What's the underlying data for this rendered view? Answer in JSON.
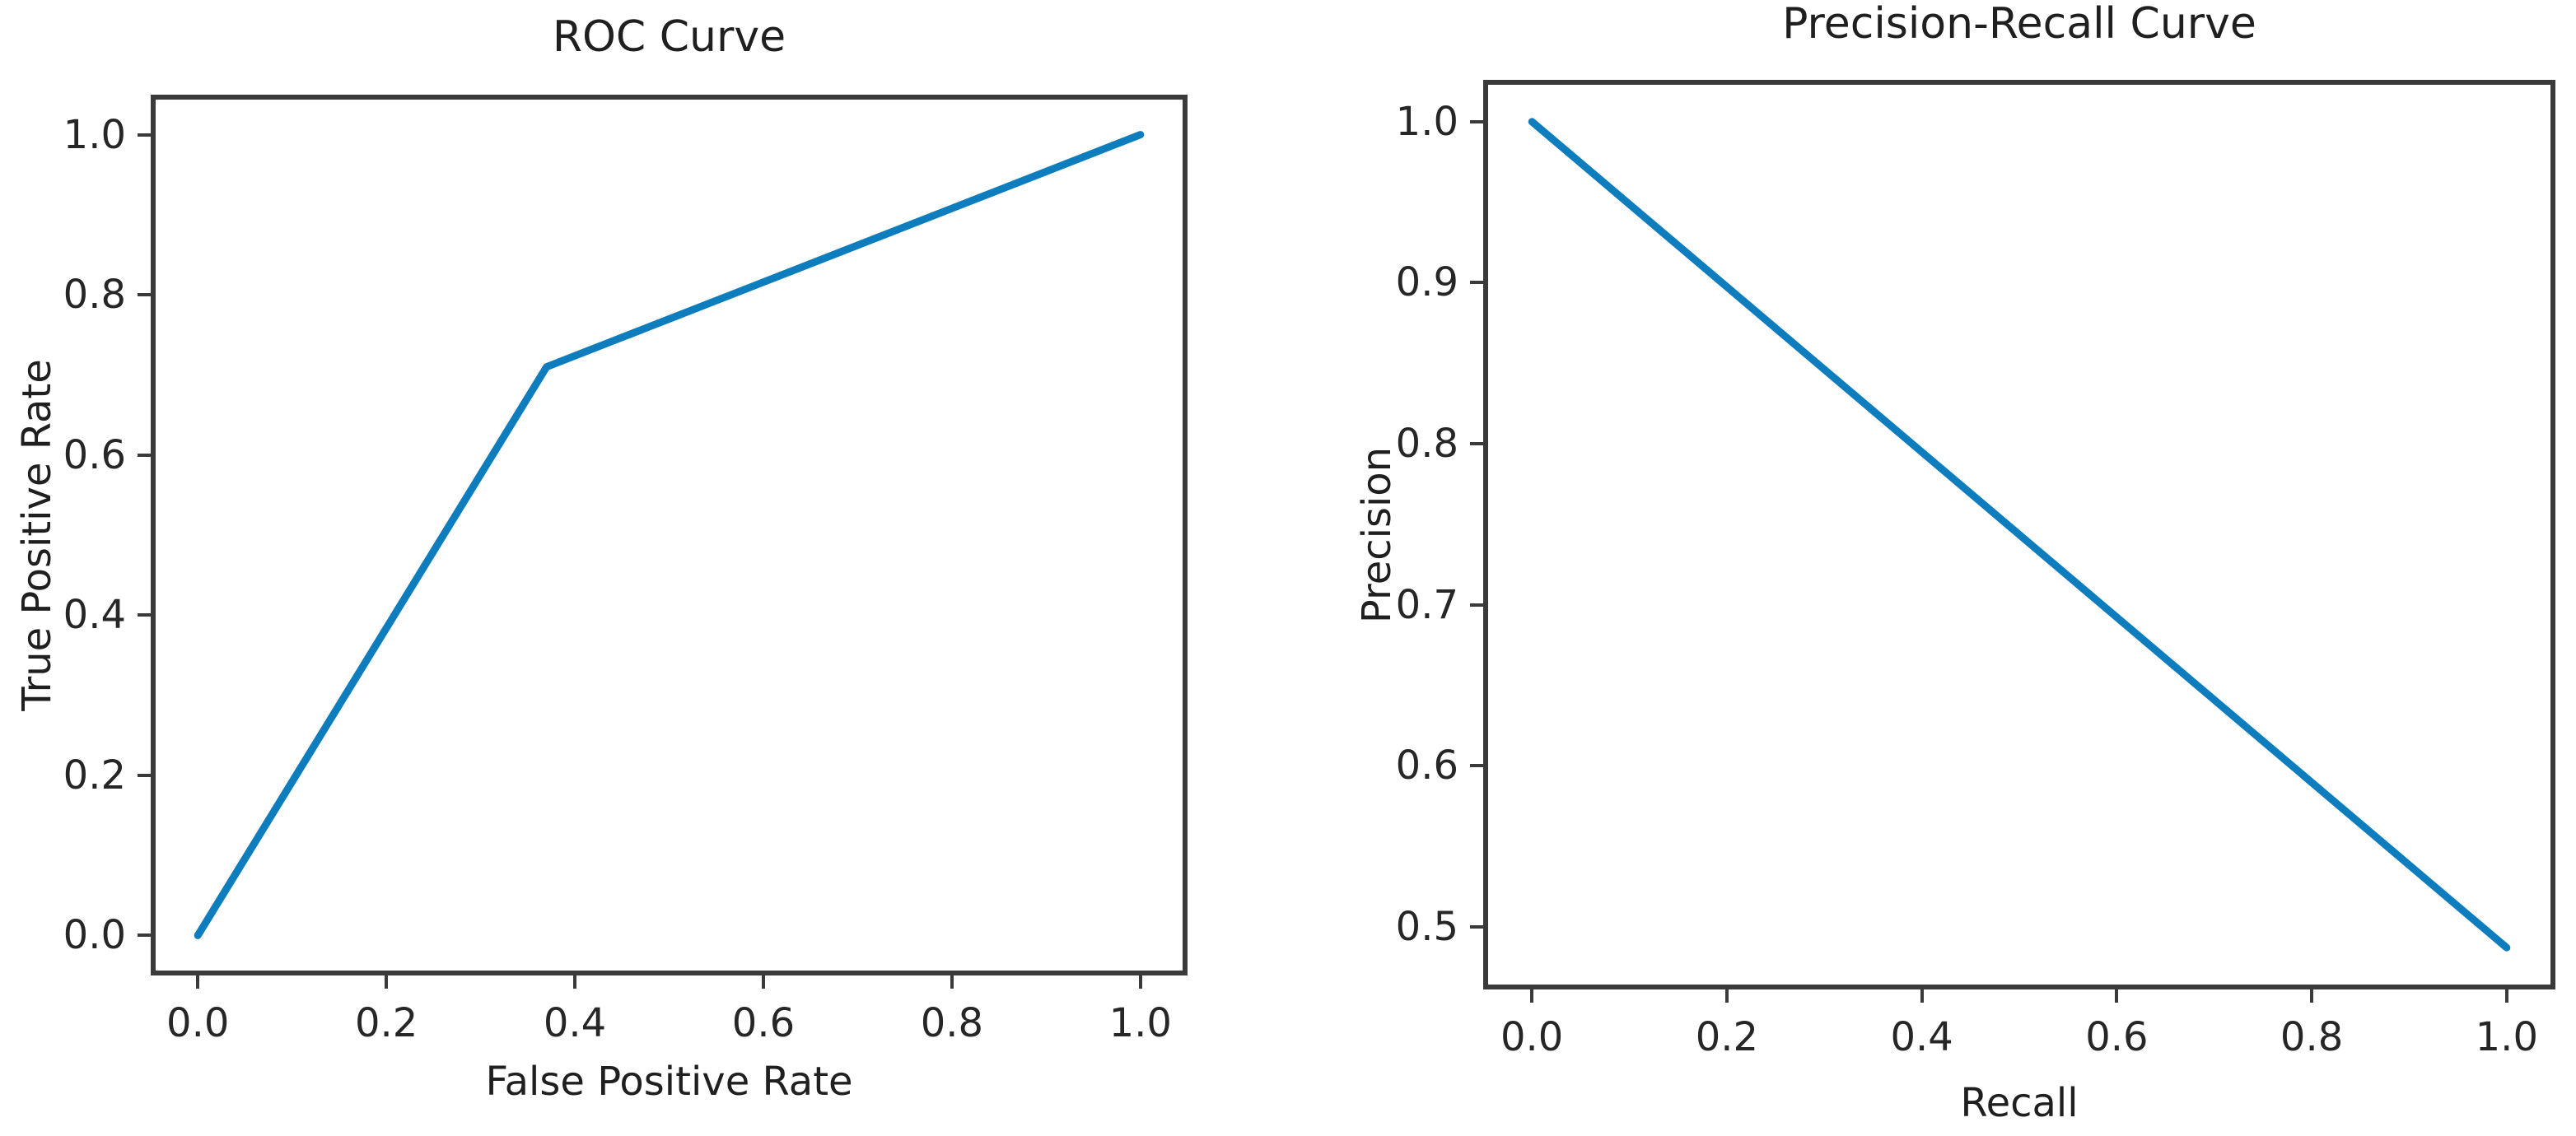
{
  "figure": {
    "background": "#ffffff",
    "spine_color": "#3a3a3a",
    "text_color": "#262626"
  },
  "chart_data": [
    {
      "id": "roc",
      "type": "line",
      "title": "ROC Curve",
      "xlabel": "False Positive Rate",
      "ylabel": "True Positive Rate",
      "x": [
        0.0,
        0.37,
        1.0
      ],
      "y": [
        0.0,
        0.71,
        1.0
      ],
      "xlim": [
        -0.05,
        1.05
      ],
      "ylim": [
        -0.05,
        1.05
      ],
      "xticks": [
        0.0,
        0.2,
        0.4,
        0.6,
        0.8,
        1.0
      ],
      "yticks": [
        0.0,
        0.2,
        0.4,
        0.6,
        0.8,
        1.0
      ],
      "xtick_labels": [
        "0.0",
        "0.2",
        "0.4",
        "0.6",
        "0.8",
        "1.0"
      ],
      "ytick_labels": [
        "0.0",
        "0.2",
        "0.4",
        "0.6",
        "0.8",
        "1.0"
      ],
      "line_color": "#0e7dbe",
      "line_width": 9,
      "grid": false,
      "legend": null
    },
    {
      "id": "pr",
      "type": "line",
      "title": "Precision-Recall Curve",
      "xlabel": "Recall",
      "ylabel": "Precision",
      "x": [
        0.0,
        1.0
      ],
      "y": [
        1.0,
        0.487
      ],
      "xlim": [
        -0.05,
        1.05
      ],
      "ylim": [
        0.461,
        1.026
      ],
      "xticks": [
        0.0,
        0.2,
        0.4,
        0.6,
        0.8,
        1.0
      ],
      "yticks": [
        0.5,
        0.6,
        0.7,
        0.8,
        0.9,
        1.0
      ],
      "xtick_labels": [
        "0.0",
        "0.2",
        "0.4",
        "0.6",
        "0.8",
        "1.0"
      ],
      "ytick_labels": [
        "0.5",
        "0.6",
        "0.7",
        "0.8",
        "0.9",
        "1.0"
      ],
      "line_color": "#0e7dbe",
      "line_width": 9,
      "grid": false,
      "legend": null
    }
  ]
}
